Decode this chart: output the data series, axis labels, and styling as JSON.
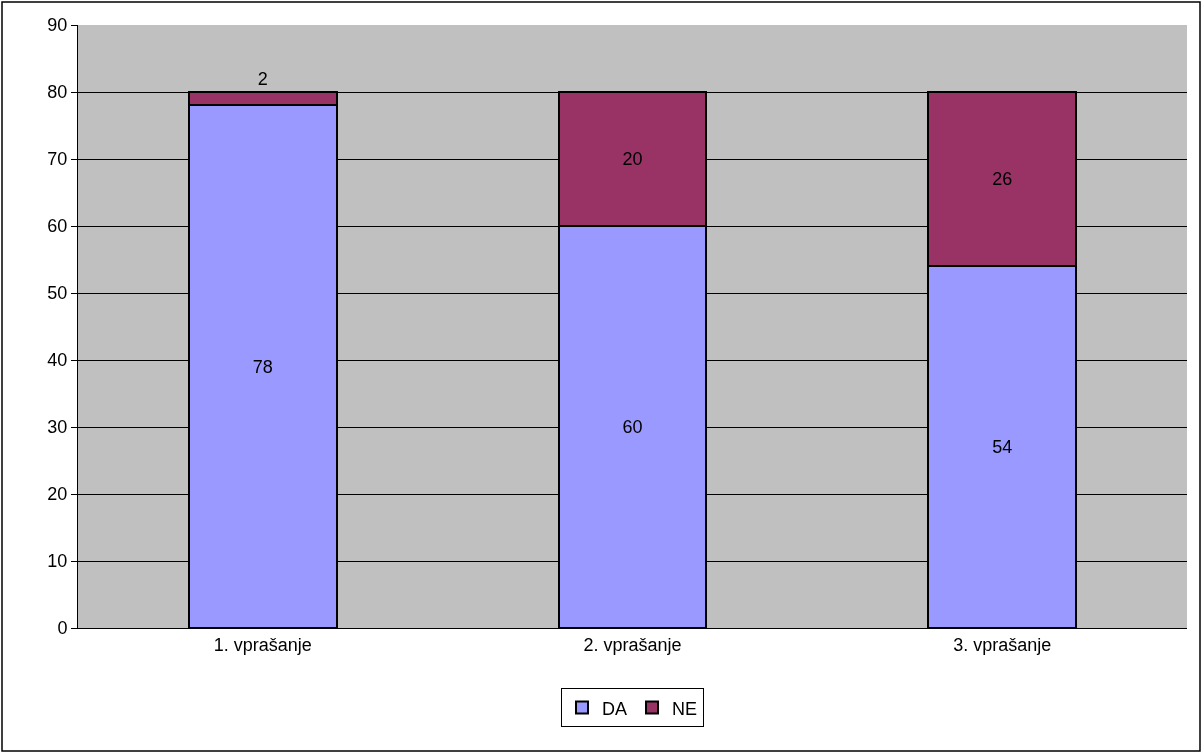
{
  "chart_data": {
    "type": "bar",
    "stacked": true,
    "categories": [
      "1. vprašanje",
      "2. vprašanje",
      "3. vprašanje"
    ],
    "series": [
      {
        "name": "DA",
        "color": "#9999ff",
        "values": [
          78,
          60,
          54
        ]
      },
      {
        "name": "NE",
        "color": "#993366",
        "values": [
          2,
          20,
          26
        ]
      }
    ],
    "ylim": [
      0,
      90
    ],
    "yticks": [
      0,
      10,
      20,
      30,
      40,
      50,
      60,
      70,
      80,
      90
    ],
    "grid": "y",
    "legend": "bottom",
    "data_labels": true
  }
}
